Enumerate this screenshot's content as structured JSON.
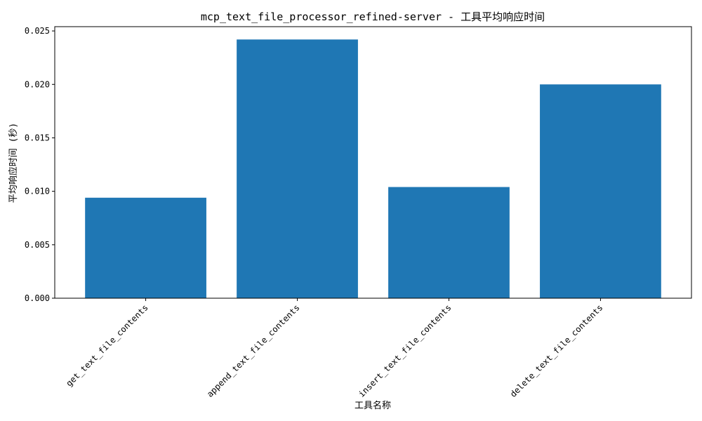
{
  "chart_data": {
    "type": "bar",
    "title": "mcp_text_file_processor_refined-server - 工具平均响应时间",
    "xlabel": "工具名称",
    "ylabel": "平均响应时间 (秒)",
    "categories": [
      "get_text_file_contents",
      "append_text_file_contents",
      "insert_text_file_contents",
      "delete_text_file_contents"
    ],
    "values": [
      0.0094,
      0.0242,
      0.0104,
      0.02
    ],
    "ylim": [
      0,
      0.0254
    ],
    "yticks": [
      0.0,
      0.005,
      0.01,
      0.015,
      0.02,
      0.025
    ],
    "ytick_labels": [
      "0.000",
      "0.005",
      "0.010",
      "0.015",
      "0.020",
      "0.025"
    ],
    "grid": false,
    "legend": "none",
    "bar_color": "#1f77b4"
  }
}
